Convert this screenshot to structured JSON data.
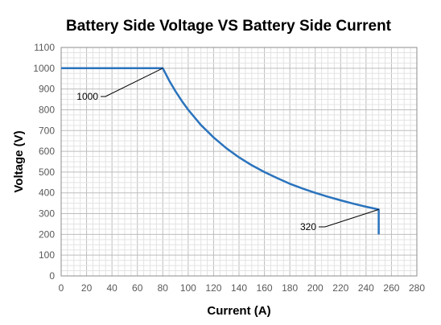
{
  "chart_data": {
    "type": "line",
    "title": "Battery Side Voltage VS Battery Side Current",
    "xlabel": "Current (A)",
    "ylabel": "Voltage (V)",
    "xlim": [
      0,
      280
    ],
    "ylim": [
      0,
      1100
    ],
    "x_ticks": [
      "0",
      "20",
      "40",
      "60",
      "80",
      "100",
      "120",
      "140",
      "160",
      "180",
      "200",
      "220",
      "240",
      "260",
      "280"
    ],
    "y_ticks": [
      "0",
      "100",
      "200",
      "300",
      "400",
      "500",
      "600",
      "700",
      "800",
      "900",
      "1000",
      "1100"
    ],
    "grid": {
      "major": true,
      "minor": true
    },
    "series": [
      {
        "color": "#2a73bd",
        "points": [
          [
            0,
            1000
          ],
          [
            80,
            1000
          ],
          [
            85,
            941
          ],
          [
            90,
            889
          ],
          [
            95,
            842
          ],
          [
            100,
            800
          ],
          [
            110,
            727
          ],
          [
            120,
            667
          ],
          [
            130,
            615
          ],
          [
            140,
            571
          ],
          [
            150,
            533
          ],
          [
            160,
            500
          ],
          [
            170,
            471
          ],
          [
            180,
            444
          ],
          [
            190,
            421
          ],
          [
            200,
            400
          ],
          [
            210,
            381
          ],
          [
            220,
            364
          ],
          [
            230,
            348
          ],
          [
            240,
            333
          ],
          [
            250,
            320
          ],
          [
            250,
            200
          ]
        ]
      }
    ],
    "annotations": [
      {
        "text": "1000",
        "target": [
          80,
          1000
        ]
      },
      {
        "text": "320",
        "target": [
          250,
          320
        ]
      }
    ]
  }
}
